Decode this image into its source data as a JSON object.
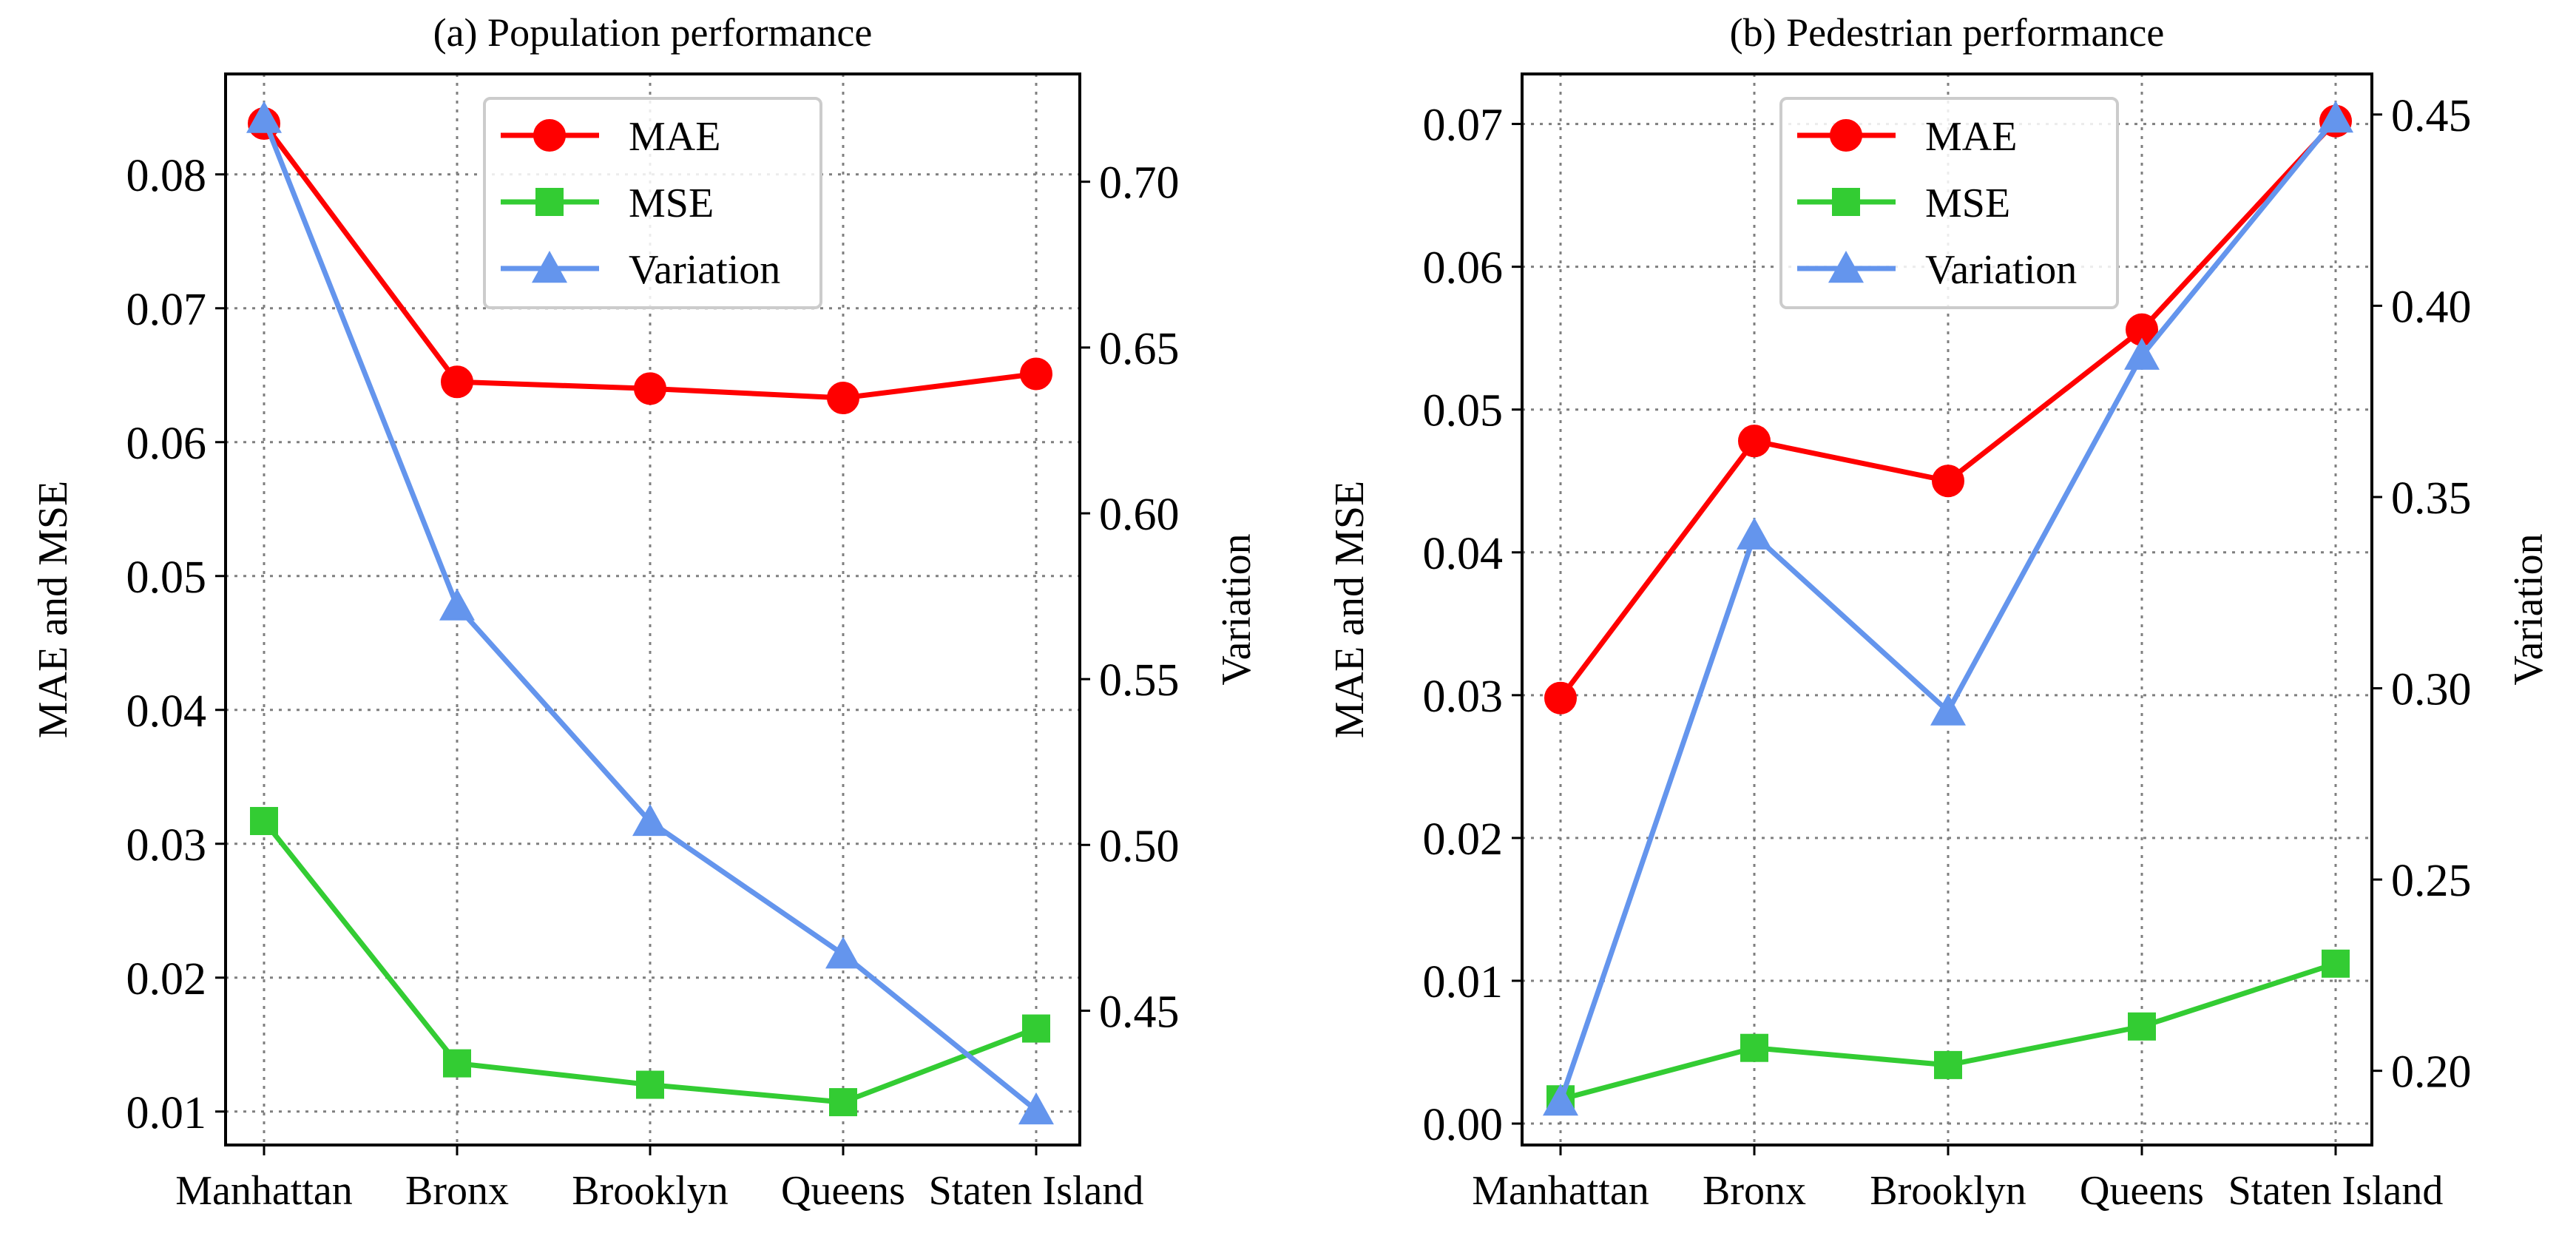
{
  "chart_data": [
    {
      "type": "line",
      "title": "(a) Population performance",
      "categories": [
        "Manhattan",
        "Bronx",
        "Brooklyn",
        "Queens",
        "Staten Island"
      ],
      "ylabel": "MAE and MSE",
      "ylabel_right": "Variation",
      "left_ylim": [
        0.0075,
        0.0875
      ],
      "left_ticks": [
        "0.01",
        "0.02",
        "0.03",
        "0.04",
        "0.05",
        "0.06",
        "0.07",
        "0.08"
      ],
      "right_ylim": [
        0.4095,
        0.7325
      ],
      "right_ticks": [
        "0.45",
        "0.50",
        "0.55",
        "0.60",
        "0.65",
        "0.70"
      ],
      "grid": true,
      "legend_position": "upper-center",
      "series": [
        {
          "name": "MAE",
          "axis": "left",
          "marker": "circle",
          "color": "#ff0000",
          "values": [
            0.0838,
            0.0645,
            0.064,
            0.0633,
            0.0651
          ]
        },
        {
          "name": "MSE",
          "axis": "left",
          "marker": "square",
          "color": "#33cc33",
          "values": [
            0.0317,
            0.0136,
            0.012,
            0.0107,
            0.0162
          ]
        },
        {
          "name": "Variation",
          "axis": "right",
          "marker": "triangle",
          "color": "#6495ed",
          "values": [
            0.719,
            0.572,
            0.507,
            0.467,
            0.42
          ]
        }
      ]
    },
    {
      "type": "line",
      "title": "(b) Pedestrian performance",
      "categories": [
        "Manhattan",
        "Bronx",
        "Brooklyn",
        "Queens",
        "Staten Island"
      ],
      "ylabel": "MAE and MSE",
      "ylabel_right": "Variation",
      "left_ylim": [
        -0.0015,
        0.0735
      ],
      "left_ticks": [
        "0.00",
        "0.01",
        "0.02",
        "0.03",
        "0.04",
        "0.05",
        "0.06",
        "0.07"
      ],
      "right_ylim": [
        0.1806,
        0.4606
      ],
      "right_ticks": [
        "0.20",
        "0.25",
        "0.30",
        "0.35",
        "0.40",
        "0.45"
      ],
      "grid": true,
      "legend_position": "upper-center",
      "series": [
        {
          "name": "MAE",
          "axis": "left",
          "marker": "circle",
          "color": "#ff0000",
          "values": [
            0.0298,
            0.0478,
            0.045,
            0.0556,
            0.0702
          ]
        },
        {
          "name": "MSE",
          "axis": "left",
          "marker": "square",
          "color": "#33cc33",
          "values": [
            0.0017,
            0.0053,
            0.0041,
            0.0068,
            0.0112
          ]
        },
        {
          "name": "Variation",
          "axis": "right",
          "marker": "triangle",
          "color": "#6495ed",
          "values": [
            0.192,
            0.34,
            0.294,
            0.387,
            0.449
          ]
        }
      ]
    }
  ]
}
